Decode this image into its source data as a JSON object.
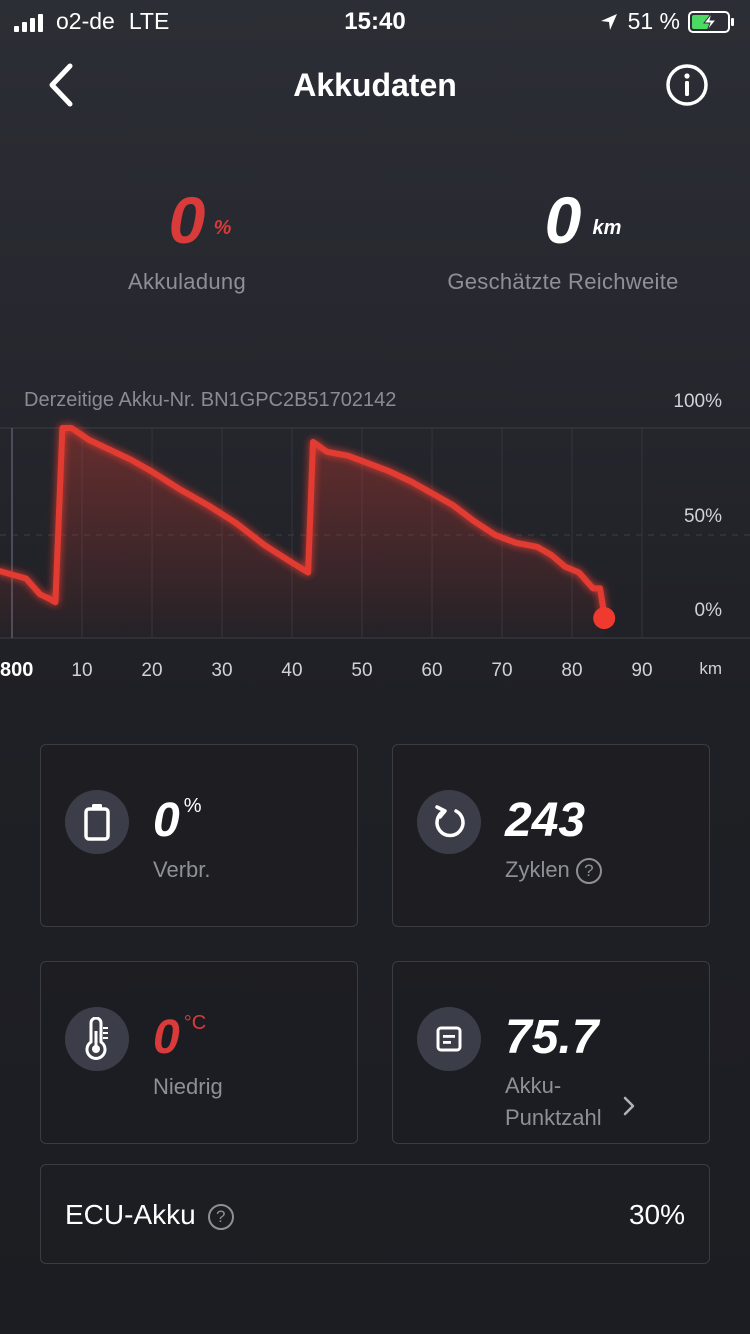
{
  "status_bar": {
    "carrier": "o2-de",
    "network": "LTE",
    "time": "15:40",
    "battery_percent": "51 %"
  },
  "nav": {
    "title": "Akkudaten"
  },
  "summary": {
    "charge_value": "0",
    "charge_unit": "%",
    "charge_label": "Akkuladung",
    "range_value": "0",
    "range_unit": "km",
    "range_label": "Geschätzte Reichweite"
  },
  "akku_nr": "Derzeitige Akku-Nr. BN1GPC2B51702142",
  "chart_data": {
    "type": "line",
    "y_tick_labels": [
      "100%",
      "50%",
      "0%"
    ],
    "x_tick_labels": [
      "800",
      "10",
      "20",
      "30",
      "40",
      "50",
      "60",
      "70",
      "80",
      "90"
    ],
    "x_unit": "km",
    "ylim": [
      0,
      100
    ],
    "series": [
      {
        "color": "#e23b30",
        "points": [
          [
            -2,
            28
          ],
          [
            2,
            24
          ],
          [
            4,
            16
          ],
          [
            5.2,
            14
          ],
          [
            6.2,
            12
          ],
          [
            7.2,
            100
          ],
          [
            8.5,
            100
          ],
          [
            11,
            94
          ],
          [
            14,
            89
          ],
          [
            17,
            84
          ],
          [
            20,
            78
          ],
          [
            24,
            69
          ],
          [
            28,
            61
          ],
          [
            32,
            52
          ],
          [
            36,
            41
          ],
          [
            40,
            32
          ],
          [
            42.3,
            27
          ],
          [
            43,
            93
          ],
          [
            45,
            88
          ],
          [
            48,
            86
          ],
          [
            51,
            82
          ],
          [
            54,
            78
          ],
          [
            57,
            73
          ],
          [
            60,
            67
          ],
          [
            63,
            61
          ],
          [
            66,
            53
          ],
          [
            69,
            46
          ],
          [
            72,
            42
          ],
          [
            75,
            40
          ],
          [
            77,
            36
          ],
          [
            79,
            30
          ],
          [
            81,
            27
          ],
          [
            83,
            19
          ],
          [
            84,
            19
          ],
          [
            84.6,
            6
          ]
        ]
      }
    ],
    "current_point": [
      84.6,
      6
    ],
    "grid": true
  },
  "cards": {
    "consumption": {
      "value": "0",
      "unit": "%",
      "label": "Verbr."
    },
    "cycles": {
      "value": "243",
      "label": "Zyklen"
    },
    "temperature": {
      "value": "0",
      "unit": "°C",
      "label": "Niedrig"
    },
    "score": {
      "value": "75.7",
      "label_line1": "Akku-",
      "label_line2": "Punktzahl"
    }
  },
  "ecu": {
    "label": "ECU-Akku",
    "value": "30%"
  },
  "colors": {
    "accent_red": "#d93a3a",
    "line_red": "#e23b30",
    "muted": "#8e9098"
  },
  "icons": [
    "back-icon",
    "info-icon",
    "battery-icon",
    "refresh-icon",
    "thermometer-icon",
    "document-icon",
    "help-icon",
    "chevron-right-icon",
    "location-arrow-icon"
  ]
}
